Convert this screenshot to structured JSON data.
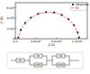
{
  "chart_data": {
    "type": "scatter",
    "x_label": "Z'/Ω",
    "y_label": "-Z''/Ω",
    "xlim": [
      0,
      14000
    ],
    "ylim": [
      0,
      7000
    ],
    "xticks": [
      {
        "value": 0,
        "label": "0.0"
      },
      {
        "value": 4000,
        "label": "4.0x10³"
      },
      {
        "value": 8000,
        "label": "8.0x10³"
      },
      {
        "value": 12000,
        "label": "1.2x10⁴"
      }
    ],
    "yticks": [
      {
        "value": 0,
        "label": "0"
      },
      {
        "value": 2000,
        "label": "2x10³"
      },
      {
        "value": 4000,
        "label": "4x10³"
      },
      {
        "value": 6000,
        "label": "6x10³"
      }
    ],
    "legend": "upper right",
    "grid": false,
    "series": [
      {
        "name": "Measured",
        "type": "scatter",
        "marker": "square",
        "color": "#111111",
        "x": [
          590,
          1064,
          1904,
          3056,
          4448,
          5978,
          7544,
          9038,
          10358,
          11414,
          12140,
          12410
        ],
        "values": [
          244,
          1738,
          3058,
          4114,
          4840,
          5176,
          5110,
          4636,
          3796,
          2644,
          1252,
          244
        ]
      },
      {
        "name": "Fit",
        "type": "line",
        "line_style": "dashed",
        "color": "#e0206a",
        "x": [
          590,
          1304,
          2642,
          4448,
          6500,
          8552,
          10358,
          11696,
          12410
        ],
        "values": [
          244,
          2200,
          3796,
          4840,
          5200,
          4840,
          3796,
          2200,
          244
        ]
      }
    ]
  },
  "circuit": {
    "elements": [
      "Rs",
      "R1",
      "CPE1",
      "R2",
      "CPE2"
    ]
  }
}
